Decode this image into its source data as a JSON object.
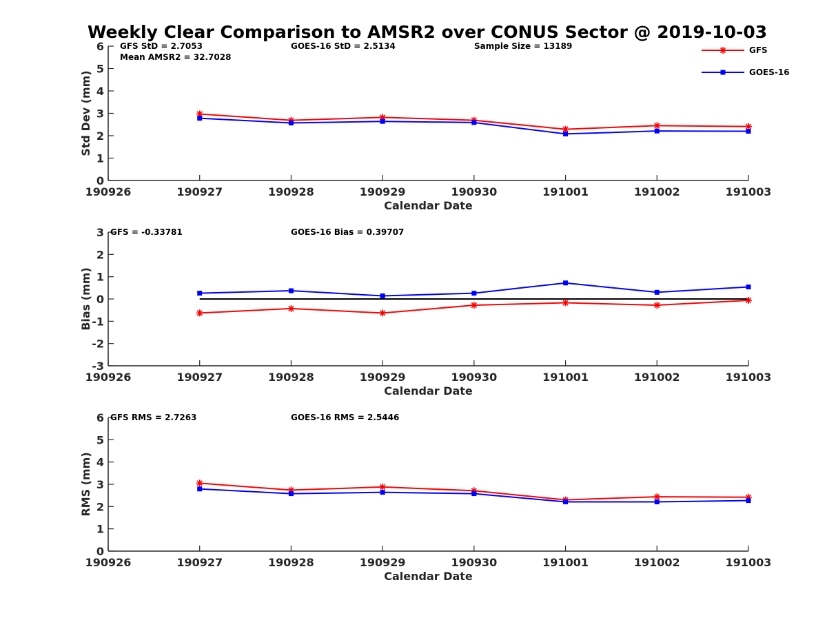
{
  "title": "Weekly Clear Comparison to AMSR2 over CONUS Sector @ 2019-10-03",
  "colors": {
    "gfs": "#ff0000",
    "goes": "#0000ff",
    "zero_line": "#000000",
    "axis": "#262626"
  },
  "legend": {
    "placement": "top-right",
    "entries": [
      {
        "name": "GFS",
        "marker": "asterisk",
        "color": "#ff0000"
      },
      {
        "name": "GOES-16",
        "marker": "square",
        "color": "#0000ff"
      }
    ]
  },
  "chart_data": [
    {
      "type": "line",
      "ylabel": "Std Dev (mm)",
      "xlabel": "Calendar Date",
      "x_ticks": [
        "190926",
        "190927",
        "190928",
        "190929",
        "190930",
        "191001",
        "191002",
        "191003"
      ],
      "x": [
        1,
        2,
        3,
        4,
        5,
        6,
        7
      ],
      "xlim": [
        0,
        7
      ],
      "ylim": [
        0,
        6
      ],
      "y_ticks": [
        0,
        1,
        2,
        3,
        4,
        5,
        6
      ],
      "zero_line": false,
      "annotations": [
        "GFS StD = 2.7053",
        "Mean AMSR2 = 32.7028",
        "GOES-16 StD = 2.5134",
        "Sample Size = 13189"
      ],
      "series": [
        {
          "name": "GFS",
          "values": [
            2.97,
            2.69,
            2.82,
            2.69,
            2.29,
            2.45,
            2.41
          ]
        },
        {
          "name": "GOES-16",
          "values": [
            2.78,
            2.57,
            2.64,
            2.59,
            2.08,
            2.21,
            2.2
          ]
        }
      ]
    },
    {
      "type": "line",
      "ylabel": "Bias (mm)",
      "xlabel": "Calendar Date",
      "x_ticks": [
        "190926",
        "190927",
        "190928",
        "190929",
        "190930",
        "191001",
        "191002",
        "191003"
      ],
      "x": [
        1,
        2,
        3,
        4,
        5,
        6,
        7
      ],
      "xlim": [
        0,
        7
      ],
      "ylim": [
        -3,
        3
      ],
      "y_ticks": [
        -3,
        -2,
        -1,
        0,
        1,
        2,
        3
      ],
      "zero_line": true,
      "annotations": [
        "GFS = -0.33781",
        "GOES-16 Bias  = 0.39707"
      ],
      "series": [
        {
          "name": "GFS",
          "values": [
            -0.63,
            -0.43,
            -0.63,
            -0.28,
            -0.17,
            -0.28,
            -0.06
          ]
        },
        {
          "name": "GOES-16",
          "values": [
            0.26,
            0.37,
            0.14,
            0.26,
            0.72,
            0.3,
            0.54
          ]
        }
      ]
    },
    {
      "type": "line",
      "ylabel": "RMS (mm)",
      "xlabel": "Calendar Date",
      "x_ticks": [
        "190926",
        "190927",
        "190928",
        "190929",
        "190930",
        "191001",
        "191002",
        "191003"
      ],
      "x": [
        1,
        2,
        3,
        4,
        5,
        6,
        7
      ],
      "xlim": [
        0,
        7
      ],
      "ylim": [
        0,
        6
      ],
      "y_ticks": [
        0,
        1,
        2,
        3,
        4,
        5,
        6
      ],
      "zero_line": false,
      "annotations": [
        "GFS RMS = 2.7263",
        "GOES-16 RMS = 2.5446"
      ],
      "series": [
        {
          "name": "GFS",
          "values": [
            3.05,
            2.74,
            2.88,
            2.71,
            2.3,
            2.44,
            2.42
          ]
        },
        {
          "name": "GOES-16",
          "values": [
            2.79,
            2.58,
            2.64,
            2.58,
            2.21,
            2.21,
            2.27
          ]
        }
      ]
    }
  ]
}
